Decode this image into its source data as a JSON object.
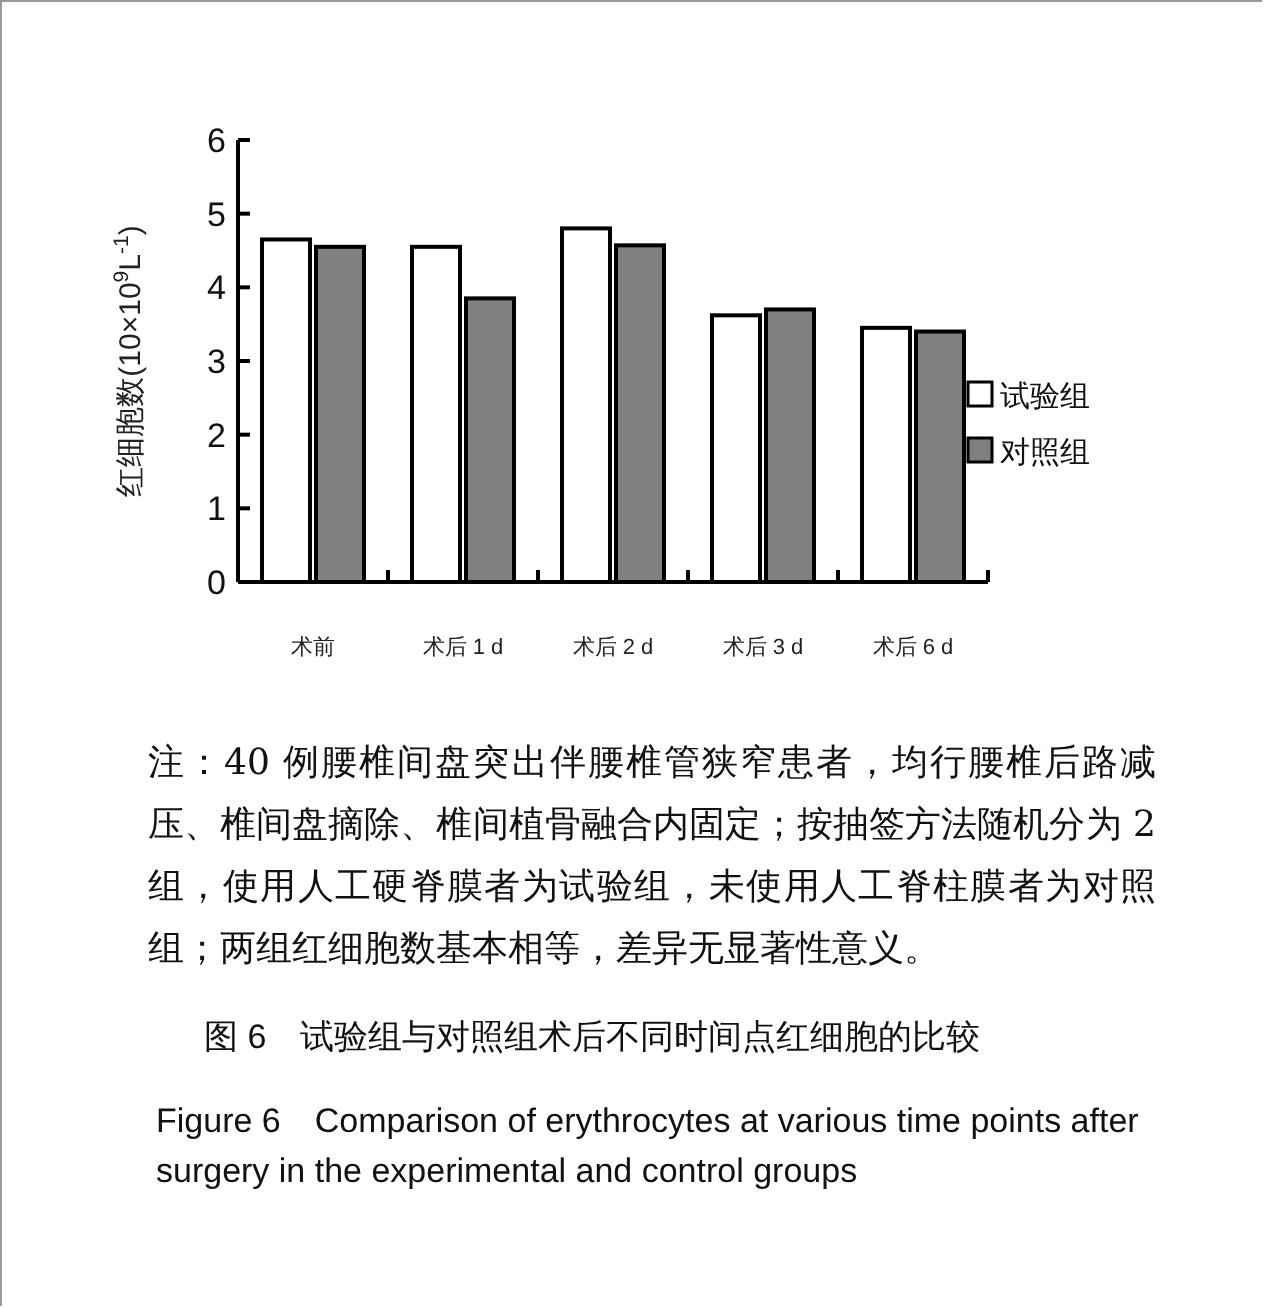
{
  "chart_data": {
    "type": "bar",
    "title": "图 6　试验组与对照组术后不同时间点红细胞的比较",
    "subtitle": "Figure 6　Comparison of erythrocytes at various time points after surgery in the experimental and control groups",
    "ylabel": "红细胞数(10×10$^{9}$L$^{-1}$)",
    "categories": [
      "术前",
      "术后 1 d",
      "术后 2 d",
      "术后 3 d",
      "术后 6 d"
    ],
    "series": [
      {
        "name": "试验组",
        "color": "#ffffff",
        "values": [
          4.65,
          4.55,
          4.8,
          3.62,
          3.45
        ]
      },
      {
        "name": "对照组",
        "color": "#808080",
        "values": [
          4.55,
          3.85,
          4.57,
          3.7,
          3.4
        ]
      }
    ],
    "ylim": [
      0,
      6
    ],
    "yticks": [
      0,
      1,
      2,
      3,
      4,
      5,
      6
    ],
    "legend": "right",
    "annotations": [
      "注：40 例腰椎间盘突出伴腰椎管狭窄患者，均行腰椎后路减压、椎间盘摘除、椎间植骨融合内固定；按抽签方法随机分为 2 组，使用人工硬脊膜者为试验组，未使用人工脊柱膜者为对照组；两组红细胞数基本相等，差异无显著性意义。"
    ]
  }
}
